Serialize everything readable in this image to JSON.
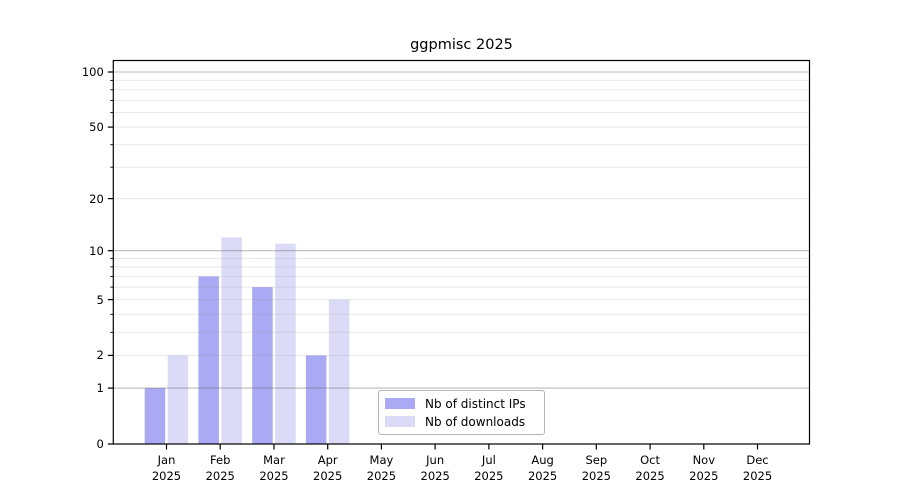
{
  "chart_data": {
    "type": "bar",
    "title": "ggpmisc 2025",
    "categories": [
      "Jan",
      "Feb",
      "Mar",
      "Apr",
      "May",
      "Jun",
      "Jul",
      "Aug",
      "Sep",
      "Oct",
      "Nov",
      "Dec"
    ],
    "year_label": "2025",
    "series": [
      {
        "name": "Nb of distinct IPs",
        "color": "#a9a9f4",
        "values": [
          1,
          7,
          6,
          2,
          0,
          0,
          0,
          0,
          0,
          0,
          0,
          0
        ]
      },
      {
        "name": "Nb of downloads",
        "color": "#dbdbf8",
        "values": [
          2,
          12,
          11,
          5,
          0,
          0,
          0,
          0,
          0,
          0,
          0,
          0
        ]
      }
    ],
    "y_scale": "log1p",
    "ylim": [
      0,
      115
    ],
    "y_ticks": [
      0,
      1,
      2,
      5,
      10,
      20,
      50,
      100
    ],
    "y_minor_ticks": [
      3,
      4,
      6,
      7,
      8,
      9,
      30,
      40,
      60,
      70,
      80,
      90
    ],
    "grid_values": [
      1,
      2,
      3,
      4,
      5,
      6,
      7,
      8,
      9,
      10,
      20,
      30,
      40,
      50,
      60,
      70,
      80,
      90,
      100
    ],
    "grid_major_values": [
      1,
      10,
      100
    ],
    "grid": true,
    "legend_position": "lower center",
    "xlabel": "",
    "ylabel": ""
  },
  "colors": {
    "spine": "#000000",
    "grid_major": "rgba(105,105,105,0.45)",
    "grid_minor": "rgba(150,150,150,0.22)",
    "background": "#ffffff"
  }
}
